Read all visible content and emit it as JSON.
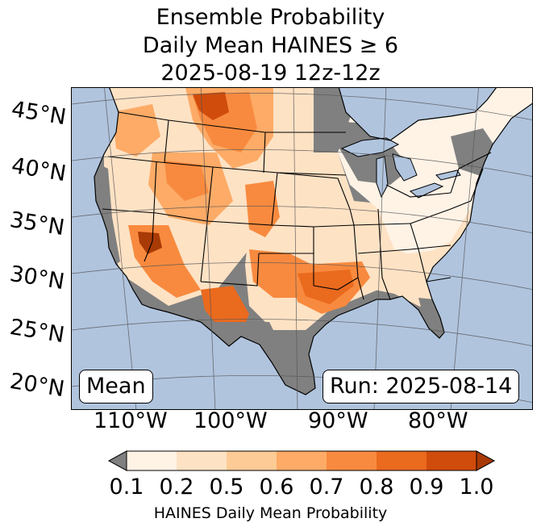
{
  "title": {
    "line1": "Ensemble Probability",
    "line2": "Daily Mean HAINES ≥ 6",
    "line3": "2025-08-19 12z-12z"
  },
  "latitude_labels": [
    "45°N",
    "40°N",
    "35°N",
    "30°N",
    "25°N",
    "20°N"
  ],
  "longitude_labels": [
    "110°W",
    "100°W",
    "90°W",
    "80°W"
  ],
  "mean_box": "Mean",
  "run_box": "Run: 2025-08-14",
  "colorbar": {
    "ticks": [
      "0.1",
      "0.2",
      "0.5",
      "0.6",
      "0.7",
      "0.8",
      "0.9",
      "1.0"
    ],
    "label": "HAINES Daily Mean Probability",
    "under_color": "#808080",
    "colors": [
      "#fff3e6",
      "#fee2c4",
      "#fdcb96",
      "#fdab67",
      "#f88a3f",
      "#ea6a1e",
      "#d04c0c",
      "#a83a06"
    ]
  },
  "map_colors": {
    "ocean": "#b0c4de",
    "land_low": "#808080",
    "lakes": "#b0c4de"
  },
  "probability_regions": [
    {
      "name": "northern-rockies",
      "level": 0.7
    },
    {
      "name": "montana-core",
      "level": 0.9
    },
    {
      "name": "great-basin",
      "level": 0.6
    },
    {
      "name": "nevada-arizona-border",
      "level": 1.0
    },
    {
      "name": "southern-plains",
      "level": 0.7
    },
    {
      "name": "lower-mississippi",
      "level": 0.8
    },
    {
      "name": "west-texas",
      "level": 0.8
    },
    {
      "name": "southeast",
      "level": 0.2
    }
  ]
}
